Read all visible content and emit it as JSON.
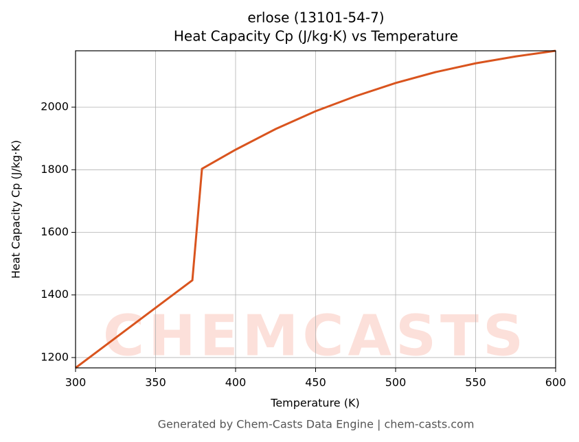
{
  "chart_data": {
    "type": "line",
    "title": "erlose (13101-54-7)",
    "subtitle": "Heat Capacity Cp (J/kg·K) vs Temperature",
    "x_label": "Temperature (K)",
    "y_label": "Heat Capacity Cp (J/kg·K)",
    "footer": "Generated by Chem-Casts Data Engine | chem-casts.com",
    "watermark": "CHEMCASTS",
    "x": [
      300,
      373,
      379,
      400,
      425,
      450,
      475,
      500,
      525,
      550,
      575,
      600
    ],
    "series": [
      {
        "name": "Cp",
        "color": "#d9541e",
        "values": [
          1167,
          1447,
          1803,
          1864,
          1930,
          1987,
          2035,
          2077,
          2112,
          2140,
          2162,
          2180
        ]
      }
    ],
    "xlim": [
      300,
      600
    ],
    "xticks": [
      300,
      350,
      400,
      450,
      500,
      550,
      600
    ],
    "ylim": [
      1167,
      2180
    ],
    "yticks": [
      1200,
      1400,
      1600,
      1800,
      2000
    ],
    "grid": true
  }
}
